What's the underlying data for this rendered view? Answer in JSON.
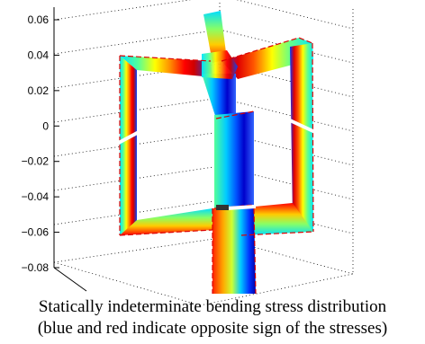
{
  "chart_data": {
    "type": "surface-3d",
    "title": "",
    "xlabel": "",
    "ylabel": "",
    "zlabel": "",
    "z_ticks": [
      "0.06",
      "0.04",
      "0.02",
      "0",
      "−0.02",
      "−0.04",
      "−0.06",
      "−0.08"
    ],
    "z_values": [
      0.06,
      0.04,
      0.02,
      0,
      -0.02,
      -0.04,
      -0.06,
      -0.08
    ],
    "zlim": [
      -0.09,
      0.07
    ],
    "grid": true,
    "colormap": "jet",
    "colormap_meaning": {
      "blue": "stress of one sign",
      "red": "stress of opposite sign"
    }
  },
  "caption": {
    "line1": "Statically indeterminate bending stress distribution",
    "line2": "(blue and red indicate opposite sign of the stresses)"
  },
  "colors": {
    "jet_blue": "#0000ff",
    "jet_cyan": "#00ffff",
    "jet_green": "#66ff66",
    "jet_yellow": "#ffff00",
    "jet_red": "#ff0000",
    "edge_red": "#dd0000"
  }
}
